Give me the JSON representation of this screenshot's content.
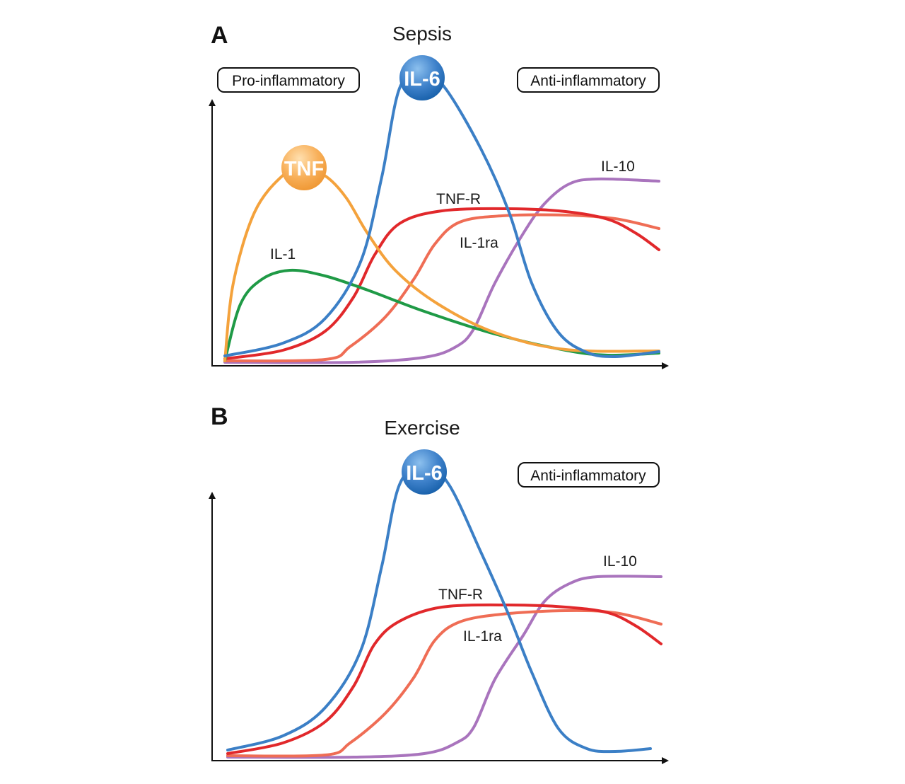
{
  "colors": {
    "il6": "#3b7fc6",
    "tnf": "#f4a23c",
    "il1": "#1f9a46",
    "tnfr": "#e1282b",
    "il1ra": "#ef6d55",
    "il10": "#a974bd",
    "axis": "#111111"
  },
  "panel_a": {
    "letter": "A",
    "title": "Sepsis",
    "box_left": "Pro-inflammatory",
    "box_right": "Anti-inflammatory",
    "ball_il6": "IL-6",
    "ball_tnf": "TNF",
    "labels": {
      "il1": "IL-1",
      "tnfr": "TNF-R",
      "il1ra": "IL-1ra",
      "il10": "IL-10"
    }
  },
  "panel_b": {
    "letter": "B",
    "title": "Exercise",
    "box_right": "Anti-inflammatory",
    "ball_il6": "IL-6",
    "labels": {
      "tnfr": "TNF-R",
      "il1ra": "IL-1ra",
      "il10": "IL-10"
    }
  }
}
